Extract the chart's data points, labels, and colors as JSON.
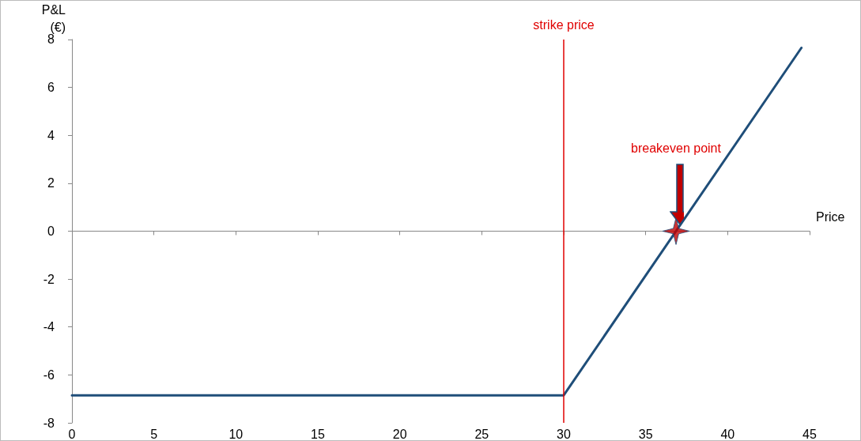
{
  "chart_data": {
    "type": "line",
    "xlabel": "Price",
    "ylabel": "P&L\n(€)",
    "x": [
      0,
      30,
      44.5
    ],
    "series": [
      {
        "color": "#1f4e79",
        "values": [
          -6.85,
          -6.85,
          7.65
        ]
      },
      {
        "type": "scatter",
        "x": [
          36.85
        ],
        "values": [
          0
        ],
        "color": "#c00000",
        "marker": "star"
      }
    ],
    "xlim": [
      0,
      45
    ],
    "xticks": [
      0,
      5,
      10,
      15,
      20,
      25,
      30,
      35,
      40,
      45
    ],
    "ylim": [
      -8,
      8
    ],
    "yticks": [
      -8,
      -6,
      -4,
      -2,
      0,
      2,
      4,
      6,
      8
    ],
    "grid": false,
    "marker": "none",
    "line_style": "solid",
    "ref_lines": [
      {
        "axis": "x",
        "value": 30,
        "label": "strike price",
        "color": "#e00000"
      }
    ],
    "annotations": [
      "breakeven point"
    ]
  }
}
